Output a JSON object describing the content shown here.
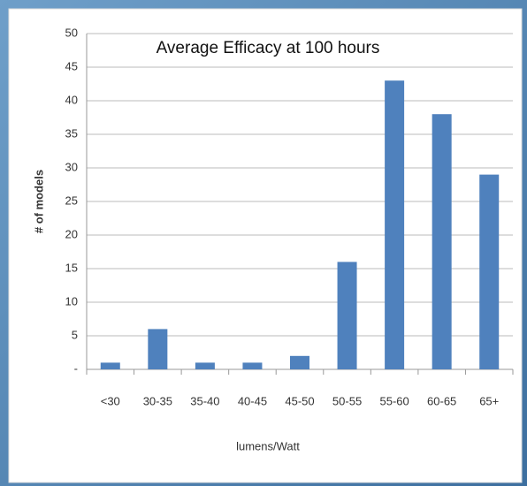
{
  "chart_data": {
    "type": "bar",
    "title": "Average Efficacy at 100 hours",
    "x_label": "lumens/Watt",
    "y_label": "# of models",
    "categories": [
      "<30",
      "30-35",
      "35-40",
      "40-45",
      "45-50",
      "50-55",
      "55-60",
      "60-65",
      "65+"
    ],
    "values": [
      1,
      6,
      1,
      1,
      2,
      16,
      43,
      38,
      29
    ],
    "color": "#4f81bd",
    "ylim": [
      0,
      50
    ],
    "yticks": [
      {
        "value": 0,
        "label": "-"
      },
      5,
      10,
      15,
      20,
      25,
      30,
      35,
      40,
      45,
      50
    ],
    "grid": true
  }
}
